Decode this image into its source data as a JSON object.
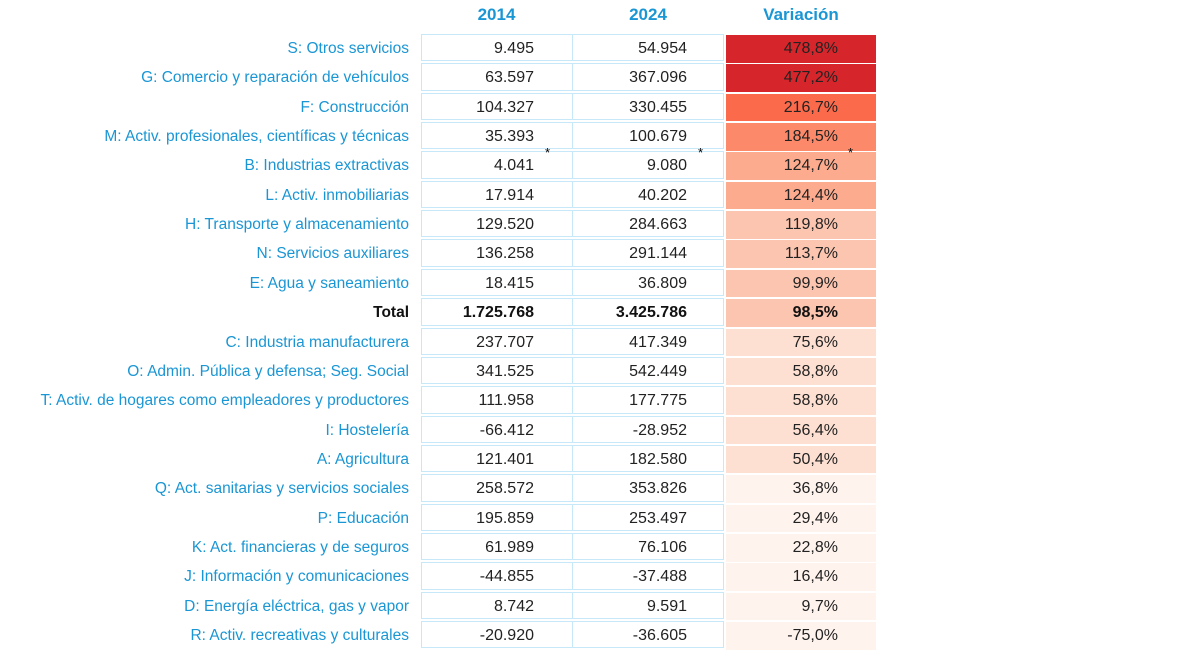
{
  "chart_data": {
    "type": "table",
    "columns": [
      "2014",
      "2024",
      "Variación"
    ],
    "rows": [
      {
        "label": "S: Otros servicios",
        "v2014": "9.495",
        "v2024": "54.954",
        "var": "478,8%",
        "pct": 478.8,
        "color": "#d7262b"
      },
      {
        "label": "G: Comercio y reparación de vehículos",
        "v2014": "63.597",
        "v2024": "367.096",
        "var": "477,2%",
        "pct": 477.2,
        "color": "#d7262b"
      },
      {
        "label": "F: Construcción",
        "v2014": "104.327",
        "v2024": "330.455",
        "var": "216,7%",
        "pct": 216.7,
        "color": "#fb6a4a"
      },
      {
        "label": "M: Activ. profesionales, científicas y técnicas",
        "v2014": "35.393",
        "v2024": "100.679",
        "var": "184,5%",
        "pct": 184.5,
        "color": "#fc8a6a"
      },
      {
        "label": "B: Industrias extractivas",
        "v2014": "4.041",
        "v2024": "9.080",
        "var": "124,7%",
        "pct": 124.7,
        "color": "#fcab8f",
        "asterisk": "*"
      },
      {
        "label": "L: Activ. inmobiliarias",
        "v2014": "17.914",
        "v2024": "40.202",
        "var": "124,4%",
        "pct": 124.4,
        "color": "#fcab8f"
      },
      {
        "label": "H: Transporte y almacenamiento",
        "v2014": "129.520",
        "v2024": "284.663",
        "var": "119,8%",
        "pct": 119.8,
        "color": "#fcc5b0"
      },
      {
        "label": "N: Servicios auxiliares",
        "v2014": "136.258",
        "v2024": "291.144",
        "var": "113,7%",
        "pct": 113.7,
        "color": "#fcc5b0"
      },
      {
        "label": "E: Agua y saneamiento",
        "v2014": "18.415",
        "v2024": "36.809",
        "var": "99,9%",
        "pct": 99.9,
        "color": "#fcc5b0"
      },
      {
        "label": "Total",
        "v2014": "1.725.768",
        "v2024": "3.425.786",
        "var": "98,5%",
        "pct": 98.5,
        "color": "#fcc5b0",
        "bold": true
      },
      {
        "label": "C: Industria manufacturera",
        "v2014": "237.707",
        "v2024": "417.349",
        "var": "75,6%",
        "pct": 75.6,
        "color": "#fee0d2"
      },
      {
        "label": "O: Admin. Pública y defensa; Seg. Social",
        "v2014": "341.525",
        "v2024": "542.449",
        "var": "58,8%",
        "pct": 58.8,
        "color": "#fee0d2"
      },
      {
        "label": "T: Activ. de hogares como empleadores y productores",
        "v2014": "111.958",
        "v2024": "177.775",
        "var": "58,8%",
        "pct": 58.8,
        "color": "#fee0d2"
      },
      {
        "label": "I: Hostelería",
        "v2014": "-66.412",
        "v2024": "-28.952",
        "var": "56,4%",
        "pct": 56.4,
        "color": "#fee0d2"
      },
      {
        "label": "A: Agricultura",
        "v2014": "121.401",
        "v2024": "182.580",
        "var": "50,4%",
        "pct": 50.4,
        "color": "#fee0d2"
      },
      {
        "label": "Q: Act. sanitarias y servicios sociales",
        "v2014": "258.572",
        "v2024": "353.826",
        "var": "36,8%",
        "pct": 36.8,
        "color": "#fff3ee"
      },
      {
        "label": "P: Educación",
        "v2014": "195.859",
        "v2024": "253.497",
        "var": "29,4%",
        "pct": 29.4,
        "color": "#fff3ee"
      },
      {
        "label": "K: Act. financieras y de seguros",
        "v2014": "61.989",
        "v2024": "76.106",
        "var": "22,8%",
        "pct": 22.8,
        "color": "#fff3ee"
      },
      {
        "label": "J: Información y comunicaciones",
        "v2014": "-44.855",
        "v2024": "-37.488",
        "var": "16,4%",
        "pct": 16.4,
        "color": "#fff3ee"
      },
      {
        "label": "D: Energía eléctrica, gas y vapor",
        "v2014": "8.742",
        "v2024": "9.591",
        "var": "9,7%",
        "pct": 9.7,
        "color": "#fff3ee"
      },
      {
        "label": "R: Activ. recreativas y culturales",
        "v2014": "-20.920",
        "v2024": "-36.605",
        "var": "-75,0%",
        "pct": -75.0,
        "color": "#fff3ee"
      }
    ]
  },
  "colors": {
    "header": "#1a96d4",
    "label": "#1a96d4",
    "border": "#c6e8f8"
  }
}
